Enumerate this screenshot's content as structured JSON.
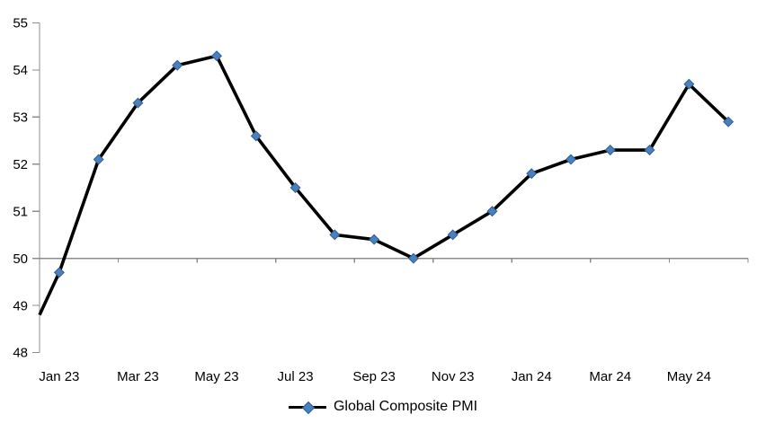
{
  "chart": {
    "colors": {
      "line": "#000000",
      "marker_fill": "#4a80bd",
      "marker_stroke": "#2f5e93",
      "axis": "#8c8c8c",
      "text": "#000000"
    }
  },
  "chart_data": {
    "type": "line",
    "title": "",
    "xlabel": "",
    "ylabel": "",
    "categories": [
      "Jan 23",
      "Feb 23",
      "Mar 23",
      "Apr 23",
      "May 23",
      "Jun 23",
      "Jul 23",
      "Aug 23",
      "Sep 23",
      "Oct 23",
      "Nov 23",
      "Dec 23",
      "Jan 24",
      "Feb 24",
      "Mar 24",
      "Apr 24",
      "May 24",
      "Jun 24"
    ],
    "series": [
      {
        "name": "Global Composite PMI",
        "values": [
          49.7,
          52.1,
          53.3,
          54.1,
          54.3,
          52.6,
          51.5,
          50.5,
          50.4,
          50.0,
          50.5,
          51.0,
          51.8,
          52.1,
          52.3,
          52.3,
          53.7,
          52.9
        ]
      }
    ],
    "line_enters_left_edge_at_value": 48.8,
    "visible_xtick_labels": [
      "Jan 23",
      "Mar 23",
      "May 23",
      "Jul 23",
      "Sep 23",
      "Nov 23",
      "Jan 24",
      "Mar 24",
      "May 24"
    ],
    "xtick_label_every_n_categories": 2,
    "ylim": [
      48,
      55
    ],
    "ytick_step": 1,
    "reference_axis_at_value": 50,
    "grid": "none (single horizontal axis line at 50 with tick marks every 2 months)",
    "legend_position": "bottom-center"
  }
}
